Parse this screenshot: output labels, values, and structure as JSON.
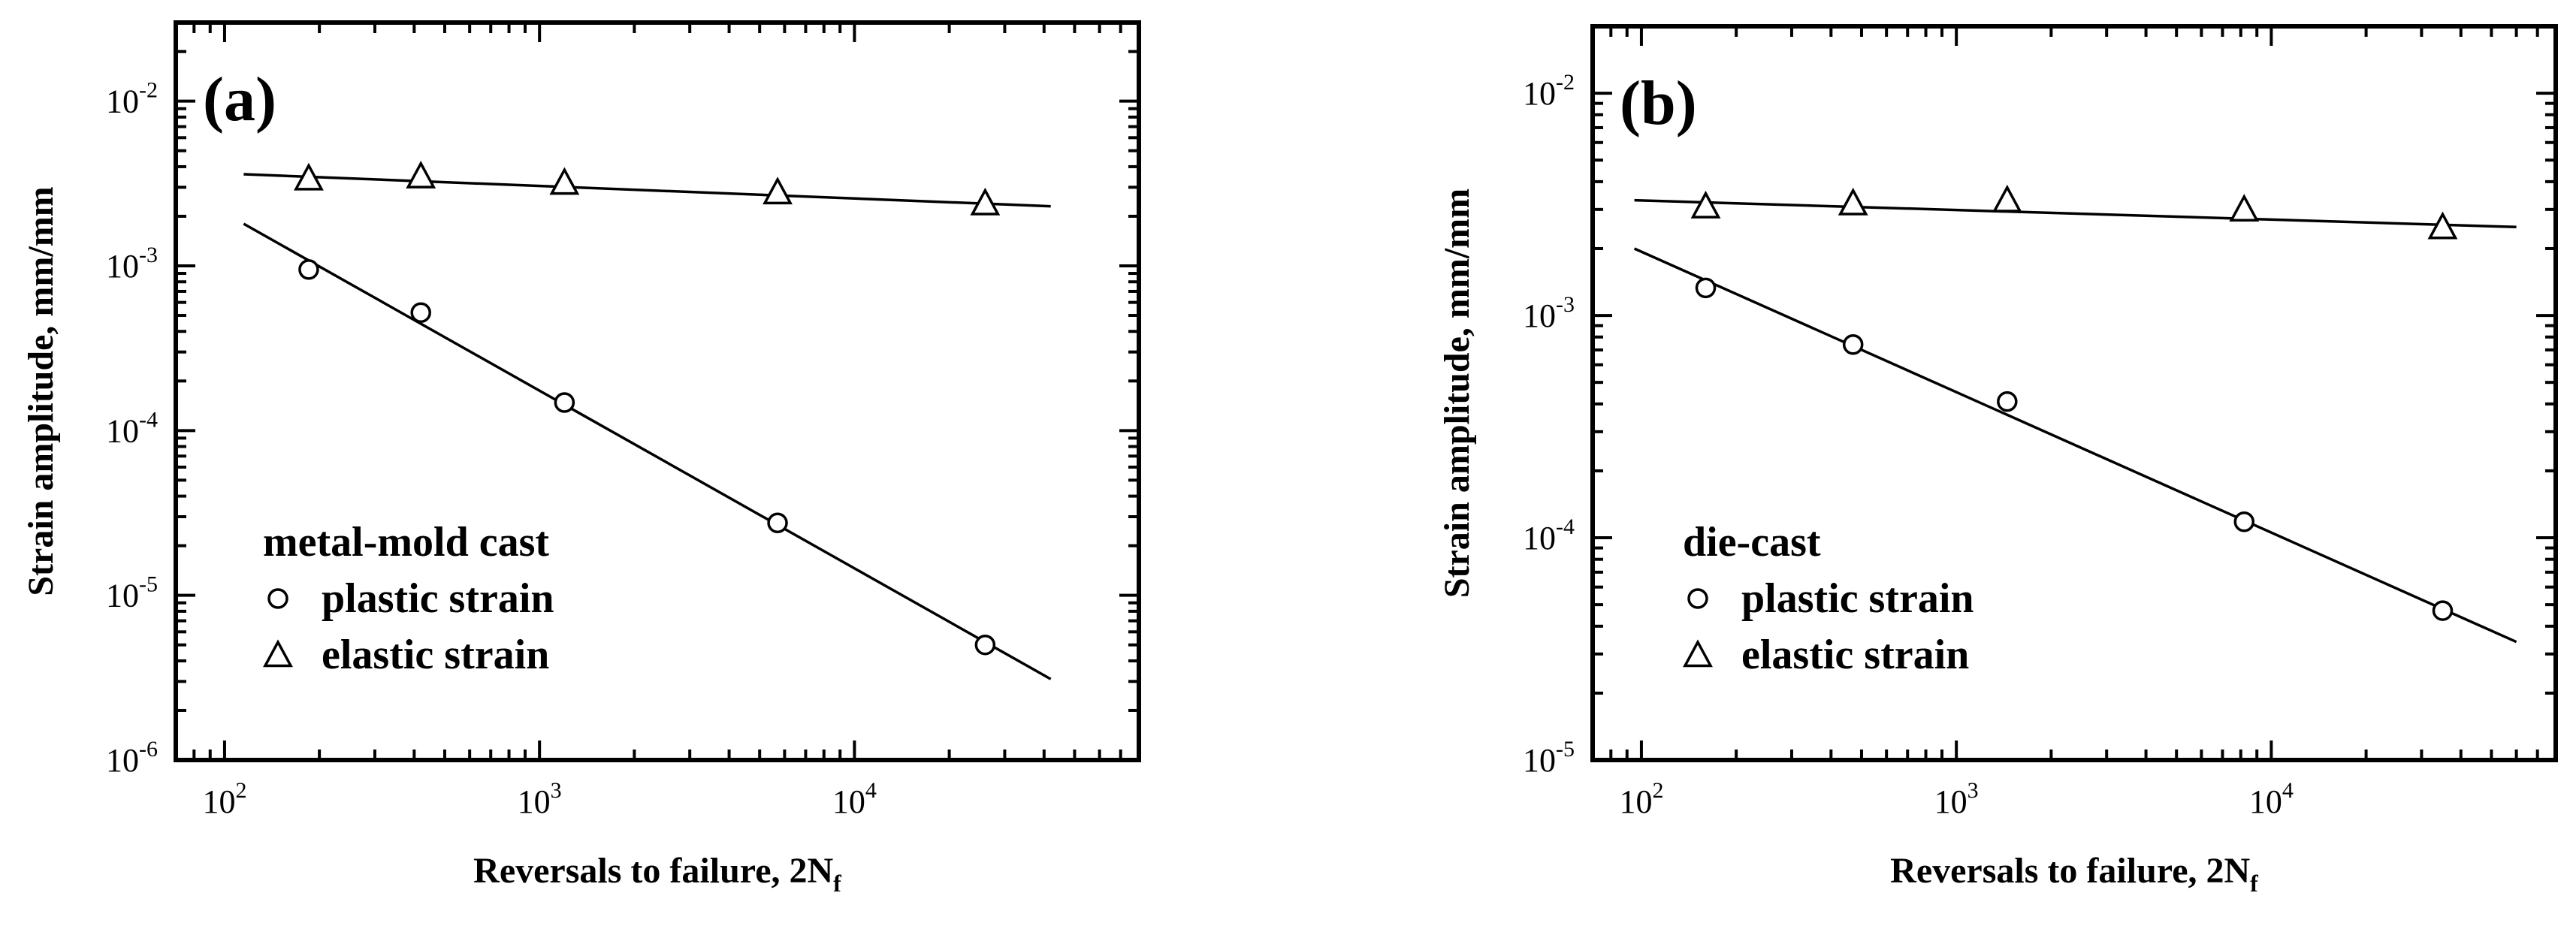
{
  "chart_data": [
    {
      "type": "scatter",
      "panel_label": "(a)",
      "xlabel": "Reversals to failure, 2N",
      "xlabel_sub": "f",
      "ylabel": "Strain amplitude, mm/mm",
      "x_scale": "log",
      "y_scale": "log",
      "xlim": [
        70,
        80000
      ],
      "ylim": [
        1e-06,
        0.03
      ],
      "x_ticks": [
        {
          "value": 100,
          "base": "10",
          "exp": "2"
        },
        {
          "value": 1000,
          "base": "10",
          "exp": "3"
        },
        {
          "value": 10000,
          "base": "10",
          "exp": "4"
        }
      ],
      "y_ticks": [
        {
          "value": 1e-06,
          "base": "10",
          "exp": "-6"
        },
        {
          "value": 1e-05,
          "base": "10",
          "exp": "-5"
        },
        {
          "value": 0.0001,
          "base": "10",
          "exp": "-4"
        },
        {
          "value": 0.001,
          "base": "10",
          "exp": "-3"
        },
        {
          "value": 0.01,
          "base": "10",
          "exp": "-2"
        }
      ],
      "legend": {
        "placement": "bottom-left",
        "title": "metal-mold cast",
        "entries": [
          {
            "marker": "circle",
            "label": "plastic strain"
          },
          {
            "marker": "triangle",
            "label": "elastic strain"
          }
        ]
      },
      "grid": false,
      "series": [
        {
          "name": "plastic strain",
          "marker": "circle",
          "x": [
            185,
            420,
            1200,
            5700,
            26000
          ],
          "y": [
            0.00095,
            0.00052,
            0.000148,
            2.75e-05,
            5e-06
          ],
          "fit_line": {
            "x": [
              115,
              42000
            ],
            "y": [
              0.0018,
              3.1e-06
            ]
          }
        },
        {
          "name": "elastic strain",
          "marker": "triangle",
          "x": [
            185,
            420,
            1200,
            5700,
            26000
          ],
          "y": [
            0.0034,
            0.0035,
            0.0032,
            0.0028,
            0.0024
          ],
          "fit_line": {
            "x": [
              115,
              42000
            ],
            "y": [
              0.0036,
              0.0023
            ]
          }
        }
      ]
    },
    {
      "type": "scatter",
      "panel_label": "(b)",
      "xlabel": "Reversals to failure, 2N",
      "xlabel_sub": "f",
      "ylabel": "Strain amplitude, mm/mm",
      "x_scale": "log",
      "y_scale": "log",
      "xlim": [
        70,
        80000
      ],
      "ylim": [
        1e-05,
        0.02
      ],
      "x_ticks": [
        {
          "value": 100,
          "base": "10",
          "exp": "2"
        },
        {
          "value": 1000,
          "base": "10",
          "exp": "3"
        },
        {
          "value": 10000,
          "base": "10",
          "exp": "4"
        }
      ],
      "y_ticks": [
        {
          "value": 1e-05,
          "base": "10",
          "exp": "-5"
        },
        {
          "value": 0.0001,
          "base": "10",
          "exp": "-4"
        },
        {
          "value": 0.001,
          "base": "10",
          "exp": "-3"
        },
        {
          "value": 0.01,
          "base": "10",
          "exp": "-2"
        }
      ],
      "legend": {
        "placement": "bottom-left",
        "title": "die-cast",
        "entries": [
          {
            "marker": "circle",
            "label": "plastic strain"
          },
          {
            "marker": "triangle",
            "label": "elastic strain"
          }
        ]
      },
      "grid": false,
      "series": [
        {
          "name": "plastic strain",
          "marker": "circle",
          "x": [
            160,
            470,
            1450,
            8200,
            35000
          ],
          "y": [
            0.00133,
            0.00074,
            0.00041,
            0.000118,
            4.7e-05
          ],
          "fit_line": {
            "x": [
              95,
              60000
            ],
            "y": [
              0.002,
              3.4e-05
            ]
          }
        },
        {
          "name": "elastic strain",
          "marker": "triangle",
          "x": [
            160,
            470,
            1450,
            8200,
            35000
          ],
          "y": [
            0.0031,
            0.0032,
            0.0033,
            0.003,
            0.0025
          ],
          "fit_line": {
            "x": [
              95,
              60000
            ],
            "y": [
              0.0033,
              0.0025
            ]
          }
        }
      ]
    }
  ]
}
